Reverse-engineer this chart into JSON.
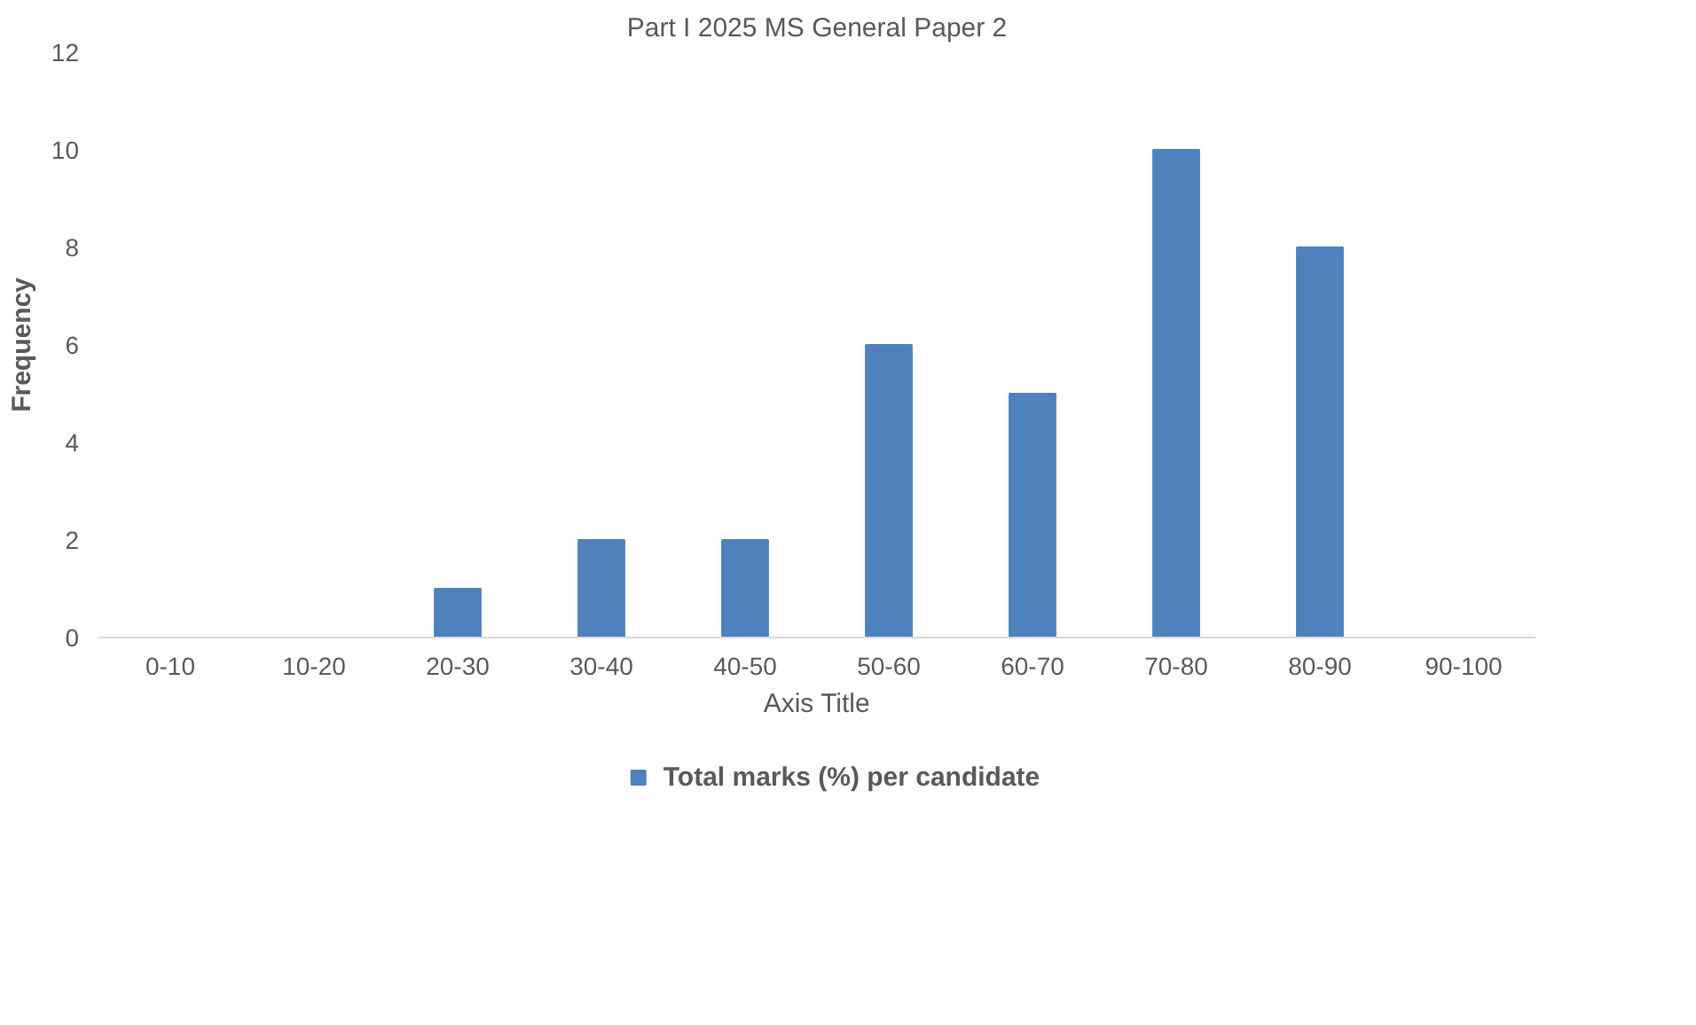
{
  "chart_data": {
    "type": "bar",
    "title": "Part I 2025 MS General Paper 2",
    "xlabel": "Axis Title",
    "ylabel": "Frequency",
    "categories": [
      "0-10",
      "10-20",
      "20-30",
      "30-40",
      "40-50",
      "50-60",
      "60-70",
      "70-80",
      "80-90",
      "90-100"
    ],
    "series": [
      {
        "name": "Total marks (%) per candidate",
        "color": "#4f81bd",
        "values": [
          0,
          0,
          1,
          2,
          2,
          6,
          5,
          10,
          8,
          0
        ]
      }
    ],
    "ylim": [
      0,
      12
    ],
    "yticks": [
      0,
      2,
      4,
      6,
      8,
      10,
      12
    ],
    "grid": false,
    "legend": "bottom"
  }
}
